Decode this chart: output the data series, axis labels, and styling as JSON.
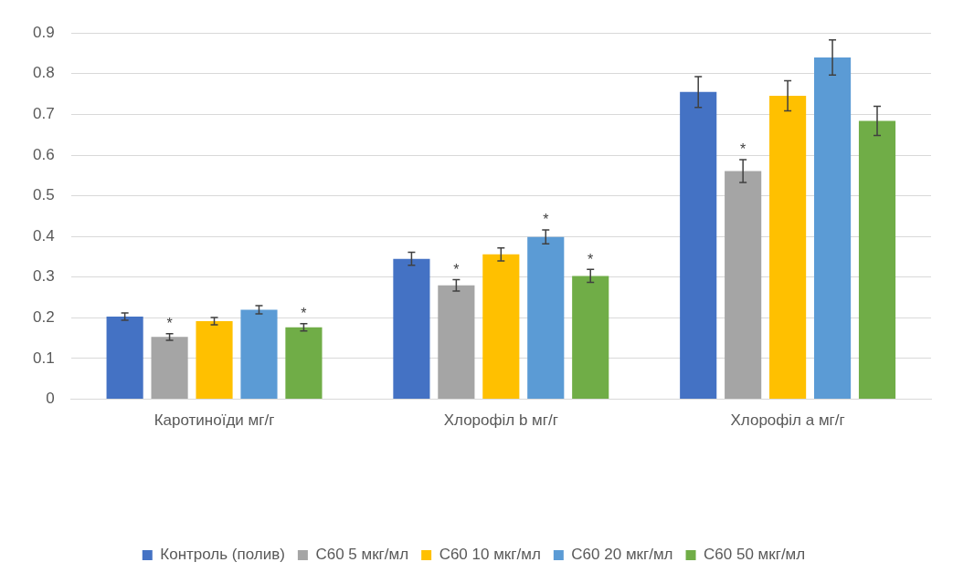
{
  "chart_data": {
    "type": "bar",
    "categories": [
      "Каротиноїди мг/г",
      "Хлорофіл b мг/г",
      "Хлорофіл a мг/г"
    ],
    "series": [
      {
        "name": "Контроль (полив)",
        "color": "#4472c4",
        "values": [
          0.203,
          0.345,
          0.755
        ],
        "errors": [
          0.009,
          0.016,
          0.038
        ]
      },
      {
        "name": "С60 5 мкг/мл",
        "color": "#a5a5a5",
        "values": [
          0.153,
          0.28,
          0.561
        ],
        "errors": [
          0.008,
          0.014,
          0.028
        ],
        "value_labels": [
          "*",
          "*",
          "*"
        ]
      },
      {
        "name": "С60 10 мкг/мл",
        "color": "#ffc000",
        "values": [
          0.192,
          0.356,
          0.746
        ],
        "errors": [
          0.009,
          0.016,
          0.037
        ]
      },
      {
        "name": "С60 20 мкг/мл",
        "color": "#5b9bd5",
        "values": [
          0.22,
          0.399,
          0.84
        ],
        "errors": [
          0.01,
          0.017,
          0.043
        ],
        "value_labels": [
          null,
          "*",
          null
        ]
      },
      {
        "name": "С60 50 мкг/мл",
        "color": "#70ad47",
        "values": [
          0.177,
          0.303,
          0.684
        ],
        "errors": [
          0.009,
          0.016,
          0.036
        ],
        "value_labels": [
          "*",
          "*",
          null
        ]
      }
    ],
    "ylim": [
      0,
      0.9
    ],
    "yticks": [
      0,
      0.1,
      0.2,
      0.3,
      0.4,
      0.5,
      0.6,
      0.7,
      0.8,
      0.9
    ],
    "grid": "y",
    "legend": "bottom"
  }
}
